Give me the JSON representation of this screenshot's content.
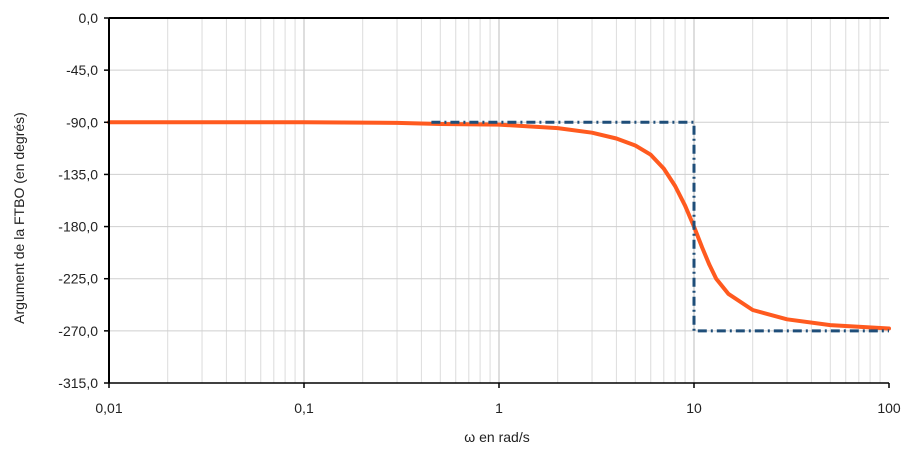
{
  "chart_data": {
    "type": "line",
    "title": "",
    "xlabel": "ω en rad/s",
    "ylabel": "Argument de la FTBO (en degrés)",
    "x_scale": "log",
    "xlim": [
      0.01,
      100
    ],
    "ylim": [
      -315,
      0
    ],
    "grid": true,
    "legend": "none",
    "x_ticks": [
      {
        "value": 0.01,
        "label": "0,01"
      },
      {
        "value": 0.1,
        "label": "0,1"
      },
      {
        "value": 1,
        "label": "1"
      },
      {
        "value": 10,
        "label": "10"
      },
      {
        "value": 100,
        "label": "100"
      }
    ],
    "y_ticks": [
      {
        "value": 0,
        "label": "0,0"
      },
      {
        "value": -45,
        "label": "-45,0"
      },
      {
        "value": -90,
        "label": "-90,0"
      },
      {
        "value": -135,
        "label": "-135,0"
      },
      {
        "value": -180,
        "label": "-180,0"
      },
      {
        "value": -225,
        "label": "-225,0"
      },
      {
        "value": -270,
        "label": "-270,0"
      },
      {
        "value": -315,
        "label": "-315,0"
      }
    ],
    "series": [
      {
        "style": "solid",
        "color": "#FF5A1F",
        "x": [
          0.01,
          0.05,
          0.1,
          0.3,
          0.5,
          1,
          2,
          3,
          4,
          5,
          6,
          7,
          8,
          9,
          10,
          11,
          12,
          13,
          15,
          20,
          30,
          50,
          100
        ],
        "y": [
          -90,
          -90,
          -90,
          -90.5,
          -91.5,
          -92,
          -95,
          -99,
          -104,
          -110,
          -118,
          -130,
          -145,
          -162,
          -180,
          -198,
          -213,
          -225,
          -238,
          -252,
          -260,
          -265,
          -268
        ]
      },
      {
        "style": "dash-dot",
        "color": "#1F4E79",
        "x": [
          0.45,
          10,
          10,
          100
        ],
        "y": [
          -90,
          -90,
          -270,
          -270
        ]
      }
    ]
  }
}
